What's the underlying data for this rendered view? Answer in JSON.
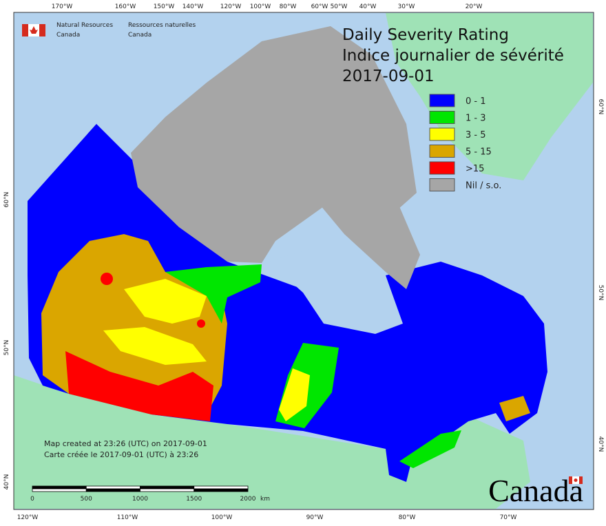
{
  "header": {
    "agency_en": "Natural Resources",
    "country_en": "Canada",
    "agency_fr": "Ressources naturelles",
    "country_fr": "Canada"
  },
  "title": {
    "line1": "Daily Severity Rating",
    "line2": "Indice journalier de sévérité",
    "date": "2017-09-01"
  },
  "legend": [
    {
      "label": "0 - 1",
      "color": "#0000ff"
    },
    {
      "label": "1 - 3",
      "color": "#00e600"
    },
    {
      "label": "3 - 5",
      "color": "#ffff00"
    },
    {
      "label": "5 - 15",
      "color": "#daa600"
    },
    {
      "label": ">15",
      "color": "#ff0000"
    },
    {
      "label": "Nil / s.o.",
      "color": "#a6a6a6"
    }
  ],
  "top_longitudes": [
    "170°W",
    "160°W",
    "150°W",
    "140°W",
    "120°W",
    "100°W",
    "80°W",
    "60°W",
    "50°W",
    "40°W",
    "30°W",
    "20°W"
  ],
  "bottom_longitudes": [
    "120°W",
    "110°W",
    "100°W",
    "90°W",
    "80°W",
    "70°W"
  ],
  "left_latitudes": [
    "60°N",
    "50°N",
    "40°N"
  ],
  "right_latitudes": [
    "60°N",
    "50°N",
    "40°N"
  ],
  "notes": [
    "Map created at 23:26 (UTC) on 2017-09-01",
    "Carte créée le 2017-09-01 (UTC) à 23:26"
  ],
  "scale_bar": {
    "labels": [
      "0",
      "500",
      "1000",
      "1500",
      "2000"
    ],
    "unit": "km"
  },
  "wordmark": "Canada"
}
